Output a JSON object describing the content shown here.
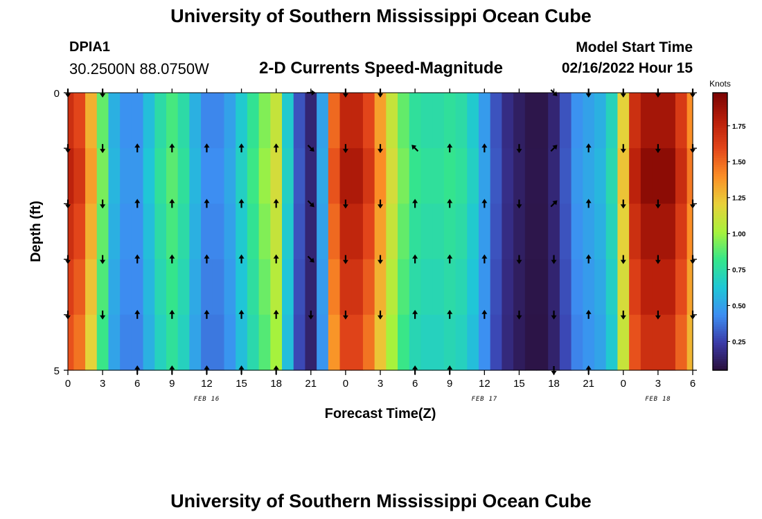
{
  "header": {
    "title": "University of Southern Mississippi Ocean Cube",
    "station_id": "DPIA1",
    "station_coords": "30.2500N  88.0750W",
    "plot_title": "2-D Currents Speed-Magnitude",
    "model_start_label": "Model Start Time",
    "model_start_value": "02/16/2022 Hour 15"
  },
  "footer": {
    "title": "University of Southern Mississippi Ocean Cube"
  },
  "chart_data": {
    "type": "heatmap",
    "title": "2-D Currents Speed-Magnitude",
    "xlabel": "Forecast Time(Z)",
    "ylabel": "Depth (ft)",
    "ylim": [
      0,
      5
    ],
    "y_tick_labels": [
      "0",
      "5"
    ],
    "x_hours": [
      0,
      1,
      2,
      3,
      4,
      5,
      6,
      7,
      8,
      9,
      10,
      11,
      12,
      13,
      14,
      15,
      16,
      17,
      18,
      19,
      20,
      21,
      22,
      23,
      24,
      25,
      26,
      27,
      28,
      29,
      30,
      31,
      32,
      33,
      34,
      35,
      36,
      37,
      38,
      39,
      40,
      41,
      42,
      43,
      44,
      45,
      46,
      47,
      48,
      49,
      50,
      51,
      52,
      53,
      54
    ],
    "x_tick_labels": [
      "0",
      "3",
      "6",
      "9",
      "12",
      "15",
      "18",
      "21",
      "0",
      "3",
      "6",
      "9",
      "12",
      "15",
      "18",
      "21",
      "0",
      "3",
      "6"
    ],
    "date_labels": [
      {
        "text": "FEB 16",
        "hour": 12
      },
      {
        "text": "FEB 17",
        "hour": 36
      },
      {
        "text": "FEB 18",
        "hour": 51
      }
    ],
    "speed_knots": [
      1.7,
      1.6,
      1.3,
      0.9,
      0.55,
      0.45,
      0.45,
      0.6,
      0.75,
      0.85,
      0.75,
      0.55,
      0.42,
      0.42,
      0.5,
      0.65,
      0.8,
      0.95,
      1.1,
      0.65,
      0.3,
      0.15,
      0.5,
      1.5,
      1.75,
      1.75,
      1.6,
      1.35,
      1.1,
      0.9,
      0.78,
      0.75,
      0.75,
      0.78,
      0.75,
      0.65,
      0.48,
      0.3,
      0.18,
      0.12,
      0.08,
      0.08,
      0.15,
      0.3,
      0.45,
      0.5,
      0.55,
      0.7,
      1.2,
      1.7,
      1.85,
      1.85,
      1.85,
      1.65,
      1.4
    ],
    "depth_factor": [
      1.0,
      1.04,
      1.0,
      0.96,
      0.92
    ],
    "arrow_rows": [
      {
        "row": 0,
        "dirs": {
          "0": "S",
          "3": "S",
          "21": "E",
          "24": "S",
          "27": "S",
          "42": "SE",
          "45": "S",
          "48": "S",
          "51": "S",
          "54": "S"
        }
      },
      {
        "row": 1,
        "dirs": {
          "0": "S",
          "3": "S",
          "6": "N",
          "9": "N",
          "12": "N",
          "15": "N",
          "18": "N",
          "21": "SE",
          "24": "S",
          "27": "S",
          "30": "NW",
          "33": "N",
          "36": "N",
          "39": "S",
          "42": "NE",
          "45": "N",
          "48": "S",
          "51": "S",
          "54": "S"
        }
      },
      {
        "row": 2,
        "dirs": {
          "0": "S",
          "3": "S",
          "6": "N",
          "9": "N",
          "12": "N",
          "15": "N",
          "18": "N",
          "21": "SE",
          "24": "S",
          "27": "S",
          "30": "N",
          "33": "N",
          "36": "N",
          "39": "S",
          "42": "NE",
          "45": "N",
          "48": "S",
          "51": "S",
          "54": "S"
        }
      },
      {
        "row": 3,
        "dirs": {
          "0": "S",
          "3": "S",
          "6": "N",
          "9": "N",
          "12": "N",
          "15": "N",
          "18": "N",
          "21": "SE",
          "24": "S",
          "27": "S",
          "30": "N",
          "33": "N",
          "36": "N",
          "39": "S",
          "42": "S",
          "45": "N",
          "48": "S",
          "51": "S",
          "54": "S"
        }
      },
      {
        "row": 4,
        "dirs": {
          "0": "S",
          "3": "S",
          "6": "N",
          "9": "N",
          "12": "N",
          "15": "N",
          "18": "N",
          "21": "S",
          "24": "S",
          "27": "S",
          "30": "N",
          "33": "N",
          "36": "N",
          "39": "S",
          "42": "S",
          "45": "N",
          "48": "S",
          "51": "S",
          "54": "S"
        }
      },
      {
        "row": 5,
        "dirs": {
          "6": "N",
          "9": "N",
          "12": "N",
          "15": "N",
          "18": "N",
          "30": "N",
          "33": "N",
          "42": "S",
          "45": "N"
        }
      }
    ],
    "colorbar": {
      "label": "Knots",
      "min": 0.05,
      "max": 1.98,
      "ticks": [
        0.25,
        0.5,
        0.75,
        1.0,
        1.25,
        1.5,
        1.75
      ],
      "tick_labels": [
        "0.25",
        "0.50",
        "0.75",
        "1.00",
        "1.25",
        "1.50",
        "1.75"
      ]
    },
    "colormap": [
      "#2a0f3a",
      "#3b3aa8",
      "#3d8ef2",
      "#1fc7d6",
      "#35e68a",
      "#a8f23c",
      "#e8d13a",
      "#fb8e26",
      "#e3461a",
      "#b81e0a",
      "#7a0403"
    ]
  }
}
